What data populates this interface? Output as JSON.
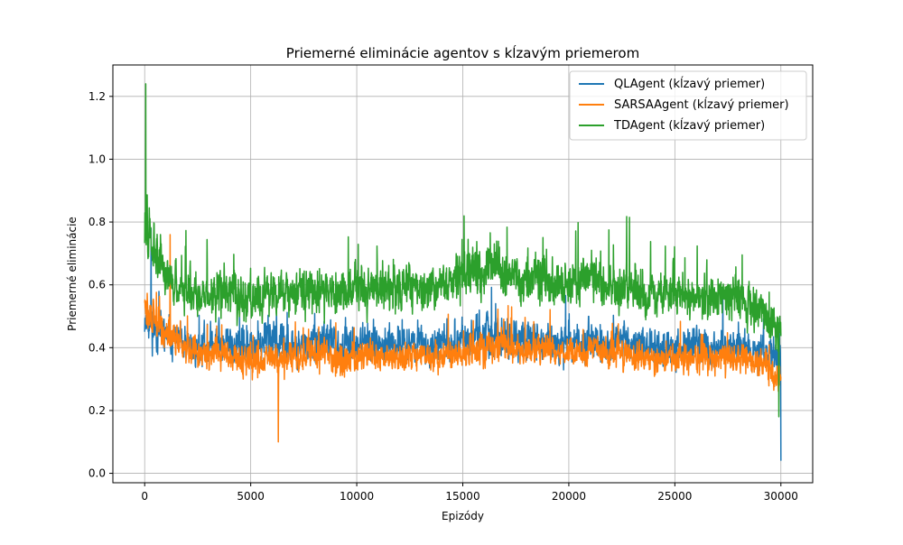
{
  "chart_data": {
    "type": "line",
    "title": "Priemerné eliminácie agentov s kĺzavým priemerom",
    "xlabel": "Epizódy",
    "ylabel": "Priemerné eliminácie",
    "xlim": [
      -1500,
      31500
    ],
    "ylim": [
      -0.03,
      1.3
    ],
    "xticks": [
      0,
      5000,
      10000,
      15000,
      20000,
      25000,
      30000
    ],
    "xtick_labels": [
      "0",
      "5000",
      "10000",
      "15000",
      "20000",
      "25000",
      "30000"
    ],
    "yticks": [
      0.0,
      0.2,
      0.4,
      0.6,
      0.8,
      1.0,
      1.2
    ],
    "ytick_labels": [
      "0.0",
      "0.2",
      "0.4",
      "0.6",
      "0.8",
      "1.0",
      "1.2"
    ],
    "grid": true,
    "legend_position": "top-right",
    "series": [
      {
        "name": "QLAgent (kĺzavý priemer)",
        "color": "#1f77b4",
        "x": [
          0,
          500,
          1000,
          1500,
          2000,
          2500,
          3000,
          3500,
          4000,
          4500,
          5000,
          5500,
          6000,
          6500,
          7000,
          7500,
          8000,
          8500,
          9000,
          9500,
          10000,
          10500,
          11000,
          11500,
          12000,
          12500,
          13000,
          13500,
          14000,
          14500,
          15000,
          15500,
          16000,
          16500,
          17000,
          17500,
          18000,
          18500,
          19000,
          19500,
          20000,
          20500,
          21000,
          21500,
          22000,
          22500,
          23000,
          23500,
          24000,
          24500,
          25000,
          25500,
          26000,
          26500,
          27000,
          27500,
          28000,
          28500,
          29000,
          29500,
          30000
        ],
        "values": [
          0.5,
          0.46,
          0.44,
          0.42,
          0.4,
          0.4,
          0.41,
          0.42,
          0.41,
          0.4,
          0.4,
          0.41,
          0.42,
          0.41,
          0.4,
          0.4,
          0.41,
          0.42,
          0.41,
          0.4,
          0.41,
          0.42,
          0.41,
          0.4,
          0.41,
          0.42,
          0.41,
          0.4,
          0.41,
          0.42,
          0.43,
          0.43,
          0.44,
          0.44,
          0.43,
          0.42,
          0.42,
          0.43,
          0.42,
          0.41,
          0.41,
          0.42,
          0.42,
          0.41,
          0.41,
          0.42,
          0.41,
          0.4,
          0.4,
          0.41,
          0.4,
          0.4,
          0.41,
          0.4,
          0.39,
          0.4,
          0.4,
          0.39,
          0.38,
          0.38,
          0.36
        ],
        "amplitude": [
          0.18,
          0.14,
          0.13,
          0.12,
          0.12,
          0.12,
          0.12,
          0.12,
          0.12,
          0.12,
          0.12,
          0.12,
          0.13,
          0.12,
          0.12,
          0.12,
          0.12,
          0.12,
          0.12,
          0.12,
          0.12,
          0.12,
          0.12,
          0.12,
          0.12,
          0.12,
          0.12,
          0.12,
          0.12,
          0.12,
          0.12,
          0.12,
          0.12,
          0.12,
          0.12,
          0.12,
          0.12,
          0.12,
          0.12,
          0.12,
          0.12,
          0.12,
          0.12,
          0.12,
          0.12,
          0.12,
          0.12,
          0.12,
          0.12,
          0.12,
          0.12,
          0.12,
          0.12,
          0.12,
          0.12,
          0.12,
          0.12,
          0.12,
          0.12,
          0.12,
          0.14
        ],
        "minimum": {
          "x": 30000,
          "y": 0.04
        },
        "maximum": {
          "x": 300,
          "y": 0.78
        }
      },
      {
        "name": "SARSAAgent (kĺzavý priemer)",
        "color": "#ff7f0e",
        "x": [
          0,
          500,
          1000,
          1500,
          2000,
          2500,
          3000,
          3500,
          4000,
          4500,
          5000,
          5500,
          6000,
          6500,
          7000,
          7500,
          8000,
          8500,
          9000,
          9500,
          10000,
          10500,
          11000,
          11500,
          12000,
          12500,
          13000,
          13500,
          14000,
          14500,
          15000,
          15500,
          16000,
          16500,
          17000,
          17500,
          18000,
          18500,
          19000,
          19500,
          20000,
          20500,
          21000,
          21500,
          22000,
          22500,
          23000,
          23500,
          24000,
          24500,
          25000,
          25500,
          26000,
          26500,
          27000,
          27500,
          28000,
          28500,
          29000,
          29500,
          30000
        ],
        "values": [
          0.52,
          0.48,
          0.45,
          0.42,
          0.4,
          0.39,
          0.38,
          0.38,
          0.37,
          0.36,
          0.36,
          0.36,
          0.36,
          0.36,
          0.37,
          0.37,
          0.38,
          0.38,
          0.37,
          0.36,
          0.37,
          0.38,
          0.37,
          0.36,
          0.37,
          0.38,
          0.37,
          0.36,
          0.36,
          0.37,
          0.38,
          0.39,
          0.4,
          0.41,
          0.4,
          0.39,
          0.39,
          0.4,
          0.39,
          0.38,
          0.38,
          0.39,
          0.4,
          0.39,
          0.38,
          0.38,
          0.37,
          0.37,
          0.36,
          0.37,
          0.37,
          0.36,
          0.37,
          0.37,
          0.36,
          0.37,
          0.37,
          0.36,
          0.35,
          0.34,
          0.3
        ],
        "amplitude": [
          0.16,
          0.12,
          0.11,
          0.1,
          0.1,
          0.1,
          0.1,
          0.1,
          0.1,
          0.1,
          0.1,
          0.1,
          0.11,
          0.1,
          0.1,
          0.1,
          0.1,
          0.1,
          0.1,
          0.1,
          0.1,
          0.1,
          0.1,
          0.1,
          0.1,
          0.1,
          0.1,
          0.1,
          0.1,
          0.1,
          0.1,
          0.11,
          0.11,
          0.11,
          0.1,
          0.1,
          0.1,
          0.1,
          0.1,
          0.1,
          0.1,
          0.1,
          0.1,
          0.1,
          0.1,
          0.1,
          0.1,
          0.1,
          0.1,
          0.1,
          0.1,
          0.1,
          0.1,
          0.1,
          0.1,
          0.1,
          0.1,
          0.1,
          0.1,
          0.1,
          0.1
        ],
        "minimum": {
          "x": 6300,
          "y": 0.1
        },
        "maximum": {
          "x": 1200,
          "y": 0.76
        }
      },
      {
        "name": "TDAgent (kĺzavý priemer)",
        "color": "#2ca02c",
        "x": [
          0,
          500,
          1000,
          1500,
          2000,
          2500,
          3000,
          3500,
          4000,
          4500,
          5000,
          5500,
          6000,
          6500,
          7000,
          7500,
          8000,
          8500,
          9000,
          9500,
          10000,
          10500,
          11000,
          11500,
          12000,
          12500,
          13000,
          13500,
          14000,
          14500,
          15000,
          15500,
          16000,
          16500,
          17000,
          17500,
          18000,
          18500,
          19000,
          19500,
          20000,
          20500,
          21000,
          21500,
          22000,
          22500,
          23000,
          23500,
          24000,
          24500,
          25000,
          25500,
          26000,
          26500,
          27000,
          27500,
          28000,
          28500,
          29000,
          29500,
          30000
        ],
        "values": [
          0.8,
          0.72,
          0.65,
          0.6,
          0.58,
          0.57,
          0.57,
          0.58,
          0.57,
          0.56,
          0.56,
          0.57,
          0.58,
          0.57,
          0.57,
          0.58,
          0.59,
          0.59,
          0.58,
          0.58,
          0.6,
          0.6,
          0.59,
          0.58,
          0.59,
          0.6,
          0.59,
          0.58,
          0.59,
          0.61,
          0.63,
          0.63,
          0.64,
          0.65,
          0.63,
          0.62,
          0.61,
          0.62,
          0.61,
          0.6,
          0.6,
          0.61,
          0.62,
          0.6,
          0.59,
          0.6,
          0.59,
          0.58,
          0.57,
          0.58,
          0.57,
          0.56,
          0.57,
          0.56,
          0.55,
          0.56,
          0.56,
          0.54,
          0.52,
          0.5,
          0.44
        ],
        "amplitude": [
          0.22,
          0.18,
          0.16,
          0.15,
          0.15,
          0.15,
          0.15,
          0.15,
          0.15,
          0.15,
          0.15,
          0.15,
          0.16,
          0.15,
          0.15,
          0.15,
          0.15,
          0.15,
          0.15,
          0.15,
          0.16,
          0.15,
          0.15,
          0.15,
          0.15,
          0.15,
          0.15,
          0.15,
          0.15,
          0.16,
          0.17,
          0.17,
          0.18,
          0.18,
          0.17,
          0.16,
          0.16,
          0.16,
          0.16,
          0.15,
          0.15,
          0.16,
          0.16,
          0.15,
          0.15,
          0.16,
          0.15,
          0.15,
          0.15,
          0.15,
          0.15,
          0.15,
          0.15,
          0.15,
          0.15,
          0.15,
          0.15,
          0.15,
          0.15,
          0.15,
          0.15
        ],
        "minimum": {
          "x": 29900,
          "y": 0.18
        },
        "maximum": {
          "x": 50,
          "y": 1.24
        }
      }
    ]
  }
}
